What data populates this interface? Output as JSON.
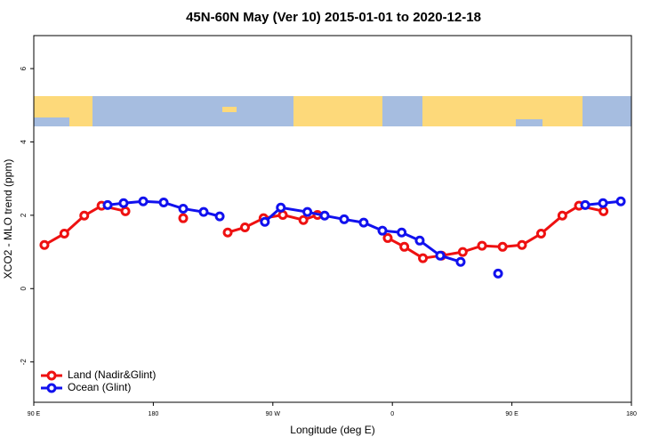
{
  "chart_data": {
    "type": "line",
    "title": "45N-60N May (Ver 10)   2015-01-01 to 2020-12-18",
    "x_label": "Longitude (deg E)",
    "y_label": "XCO2 - MLO trend (ppm)",
    "xlim": [
      90,
      540
    ],
    "xticks": [
      {
        "value": 90,
        "label": "90 E"
      },
      {
        "value": 180,
        "label": "180"
      },
      {
        "value": 270,
        "label": "90 W"
      },
      {
        "value": 360,
        "label": "0"
      },
      {
        "value": 450,
        "label": "90 E"
      },
      {
        "value": 540,
        "label": "180"
      }
    ],
    "ylim": [
      -3.1,
      6.9
    ],
    "yticks": [
      -2,
      0,
      2,
      4,
      6
    ],
    "legend": "bottom-left",
    "series": [
      {
        "name": "Land (Nadir&Glint)",
        "color": "#ee1111",
        "x": [
          98,
          113,
          128,
          141,
          159,
          null,
          202.5,
          null,
          236,
          249,
          263,
          277.5,
          293,
          303.6,
          null,
          356.5,
          369,
          383,
          397,
          413,
          427.5,
          443,
          457.6,
          472,
          488,
          500.5,
          519
        ],
        "values": [
          1.19,
          1.5,
          1.99,
          2.26,
          2.11,
          null,
          1.92,
          null,
          1.53,
          1.67,
          1.92,
          2.01,
          1.87,
          2.01,
          null,
          1.38,
          1.14,
          0.83,
          0.9,
          1.0,
          1.17,
          1.14,
          1.19,
          1.5,
          1.99,
          2.26,
          2.11
        ]
      },
      {
        "name": "Ocean (Glint)",
        "color": "#1111ee",
        "x": [
          145.6,
          157.6,
          172.4,
          187.8,
          202.5,
          217.9,
          230,
          null,
          264,
          276,
          296,
          309,
          323.7,
          338.4,
          352.5,
          367,
          380.6,
          396,
          411.4,
          null,
          439.6,
          null,
          505.2,
          518.6,
          532
        ],
        "values": [
          2.28,
          2.33,
          2.38,
          2.35,
          2.18,
          2.09,
          1.97,
          null,
          1.82,
          2.21,
          2.09,
          1.99,
          1.89,
          1.8,
          1.58,
          1.53,
          1.31,
          0.9,
          0.73,
          null,
          0.41,
          null,
          2.28,
          2.33,
          2.38
        ]
      }
    ]
  }
}
